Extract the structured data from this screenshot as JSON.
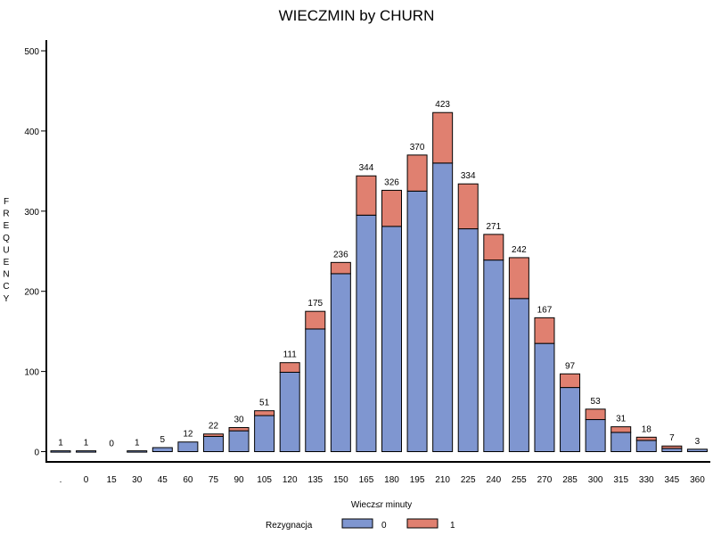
{
  "chart_data": {
    "type": "bar",
    "stacked": true,
    "title": "WIECZMIN by CHURN",
    "xlabel": "Wiecz≤r minuty",
    "ylabel": "FREQUENCY",
    "ylim": [
      0,
      500
    ],
    "yticks": [
      0,
      100,
      200,
      300,
      400,
      500
    ],
    "categories": [
      ".",
      "0",
      "15",
      "30",
      "45",
      "60",
      "75",
      "90",
      "105",
      "120",
      "135",
      "150",
      "165",
      "180",
      "195",
      "210",
      "225",
      "240",
      "255",
      "270",
      "285",
      "300",
      "315",
      "330",
      "345",
      "360"
    ],
    "totals": [
      1,
      1,
      0,
      1,
      5,
      12,
      22,
      30,
      51,
      111,
      175,
      236,
      344,
      326,
      370,
      423,
      334,
      271,
      242,
      167,
      97,
      53,
      31,
      18,
      7,
      3
    ],
    "series": [
      {
        "name": "0",
        "color": "#7f96d0",
        "values": [
          1,
          1,
          0,
          1,
          5,
          12,
          19,
          26,
          45,
          99,
          153,
          222,
          295,
          281,
          325,
          360,
          278,
          239,
          191,
          135,
          80,
          40,
          24,
          14,
          4,
          3
        ]
      },
      {
        "name": "1",
        "color": "#e08070",
        "values": [
          0,
          0,
          0,
          0,
          0,
          0,
          3,
          4,
          6,
          12,
          22,
          14,
          49,
          45,
          45,
          63,
          56,
          32,
          51,
          32,
          17,
          13,
          7,
          4,
          3,
          0
        ]
      }
    ],
    "legend": {
      "title": "Rezygnacja",
      "placement": "bottom"
    },
    "grid": false
  }
}
